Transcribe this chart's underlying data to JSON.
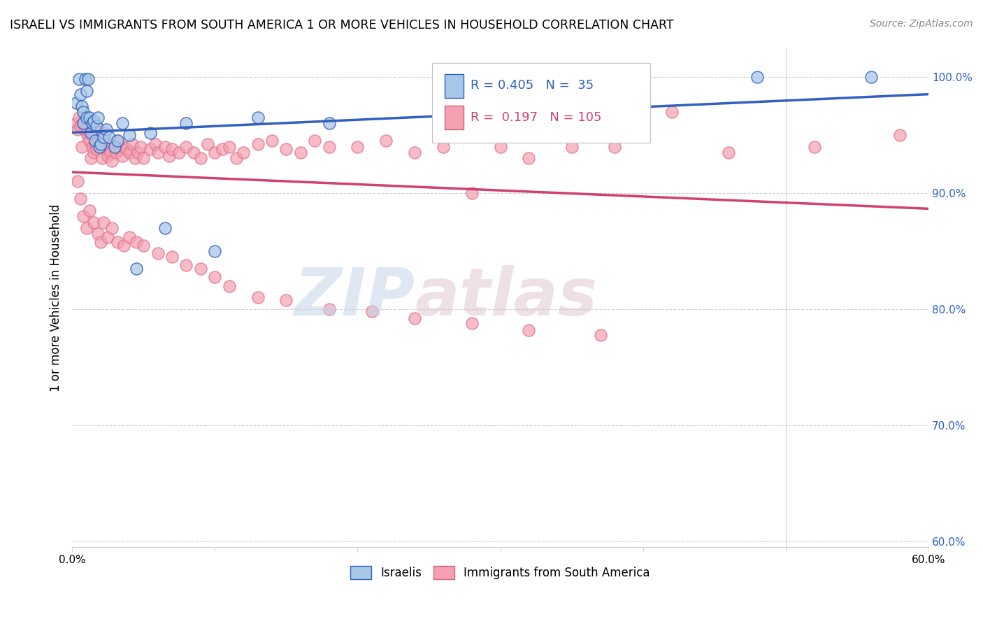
{
  "title": "ISRAELI VS IMMIGRANTS FROM SOUTH AMERICA 1 OR MORE VEHICLES IN HOUSEHOLD CORRELATION CHART",
  "source": "Source: ZipAtlas.com",
  "ylabel": "1 or more Vehicles in Household",
  "r_blue": 0.405,
  "n_blue": 35,
  "r_pink": 0.197,
  "n_pink": 105,
  "blue_color": "#a8c8e8",
  "pink_color": "#f4a0b0",
  "blue_line_color": "#3060c0",
  "pink_line_color": "#d04070",
  "watermark_zip": "ZIP",
  "watermark_atlas": "atlas",
  "xlim": [
    0.0,
    0.6
  ],
  "ylim": [
    0.595,
    1.025
  ],
  "blue_scatter_x": [
    0.003,
    0.005,
    0.006,
    0.007,
    0.008,
    0.008,
    0.009,
    0.01,
    0.01,
    0.011,
    0.012,
    0.013,
    0.014,
    0.015,
    0.016,
    0.017,
    0.018,
    0.019,
    0.02,
    0.022,
    0.024,
    0.026,
    0.03,
    0.032,
    0.035,
    0.04,
    0.045,
    0.055,
    0.065,
    0.08,
    0.1,
    0.13,
    0.18,
    0.48,
    0.56
  ],
  "blue_scatter_y": [
    0.978,
    0.998,
    0.985,
    0.975,
    0.97,
    0.96,
    0.998,
    0.988,
    0.965,
    0.998,
    0.965,
    0.952,
    0.96,
    0.962,
    0.945,
    0.958,
    0.965,
    0.94,
    0.942,
    0.948,
    0.955,
    0.948,
    0.94,
    0.945,
    0.96,
    0.95,
    0.835,
    0.952,
    0.87,
    0.96,
    0.85,
    0.965,
    0.96,
    1.0,
    1.0
  ],
  "pink_scatter_x": [
    0.003,
    0.004,
    0.005,
    0.006,
    0.007,
    0.008,
    0.009,
    0.01,
    0.011,
    0.012,
    0.013,
    0.014,
    0.015,
    0.015,
    0.016,
    0.017,
    0.018,
    0.019,
    0.02,
    0.021,
    0.022,
    0.023,
    0.024,
    0.025,
    0.026,
    0.027,
    0.028,
    0.03,
    0.031,
    0.032,
    0.033,
    0.035,
    0.036,
    0.038,
    0.04,
    0.042,
    0.044,
    0.046,
    0.048,
    0.05,
    0.055,
    0.058,
    0.06,
    0.065,
    0.068,
    0.07,
    0.075,
    0.08,
    0.085,
    0.09,
    0.095,
    0.1,
    0.105,
    0.11,
    0.115,
    0.12,
    0.13,
    0.14,
    0.15,
    0.16,
    0.17,
    0.18,
    0.2,
    0.22,
    0.24,
    0.26,
    0.28,
    0.3,
    0.32,
    0.35,
    0.38,
    0.42,
    0.46,
    0.52,
    0.58,
    0.004,
    0.006,
    0.008,
    0.01,
    0.012,
    0.015,
    0.018,
    0.02,
    0.022,
    0.025,
    0.028,
    0.032,
    0.036,
    0.04,
    0.045,
    0.05,
    0.06,
    0.07,
    0.08,
    0.09,
    0.1,
    0.11,
    0.13,
    0.15,
    0.18,
    0.21,
    0.24,
    0.28,
    0.32,
    0.37
  ],
  "pink_scatter_y": [
    0.96,
    0.955,
    0.965,
    0.958,
    0.94,
    0.96,
    0.955,
    0.952,
    0.948,
    0.945,
    0.93,
    0.94,
    0.935,
    0.96,
    0.942,
    0.938,
    0.948,
    0.955,
    0.94,
    0.93,
    0.945,
    0.952,
    0.938,
    0.932,
    0.942,
    0.935,
    0.928,
    0.94,
    0.935,
    0.945,
    0.938,
    0.932,
    0.94,
    0.938,
    0.935,
    0.942,
    0.93,
    0.935,
    0.94,
    0.93,
    0.938,
    0.942,
    0.935,
    0.94,
    0.932,
    0.938,
    0.935,
    0.94,
    0.935,
    0.93,
    0.942,
    0.935,
    0.938,
    0.94,
    0.93,
    0.935,
    0.942,
    0.945,
    0.938,
    0.935,
    0.945,
    0.94,
    0.94,
    0.945,
    0.935,
    0.94,
    0.9,
    0.94,
    0.93,
    0.94,
    0.94,
    0.97,
    0.935,
    0.94,
    0.95,
    0.91,
    0.895,
    0.88,
    0.87,
    0.885,
    0.875,
    0.865,
    0.858,
    0.875,
    0.862,
    0.87,
    0.858,
    0.855,
    0.862,
    0.858,
    0.855,
    0.848,
    0.845,
    0.838,
    0.835,
    0.828,
    0.82,
    0.81,
    0.808,
    0.8,
    0.798,
    0.792,
    0.788,
    0.782,
    0.778
  ]
}
